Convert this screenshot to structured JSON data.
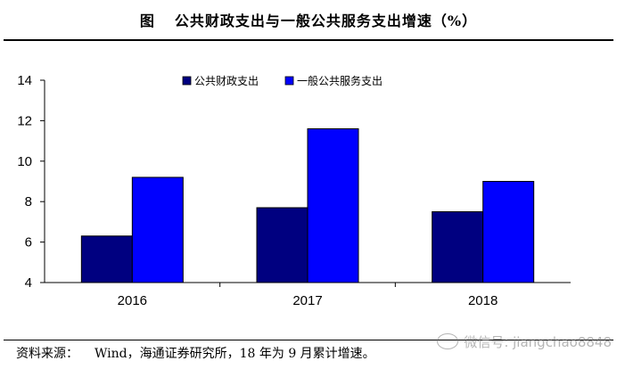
{
  "figure": {
    "label": "图",
    "title": "公共财政支出与一般公共服务支出增速（%）"
  },
  "footer": {
    "source_label": "资料来源：",
    "source_text": "Wind，海通证券研究所，18 年为 9 月累计增速。"
  },
  "watermark": {
    "text": "微信号: jiangchao8848",
    "icon": "wechat-icon"
  },
  "chart_data": {
    "type": "bar",
    "categories": [
      "2016",
      "2017",
      "2018"
    ],
    "series": [
      {
        "name": "公共财政支出",
        "values": [
          6.3,
          7.7,
          7.5
        ],
        "color": "#000080"
      },
      {
        "name": "一般公共服务支出",
        "values": [
          9.2,
          11.6,
          9.0
        ],
        "color": "#0000FF"
      }
    ],
    "ylim": [
      4,
      14
    ],
    "yticks": [
      4,
      6,
      8,
      10,
      12,
      14
    ],
    "grid": false,
    "legend": "top-center",
    "xlabel": "",
    "ylabel": ""
  }
}
